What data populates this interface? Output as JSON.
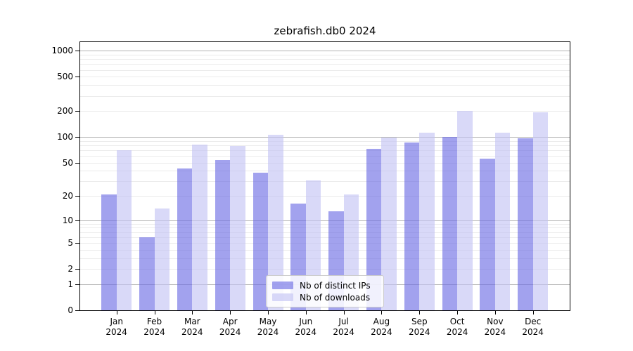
{
  "chart_data": {
    "type": "bar",
    "title": "zebrafish.db0 2024",
    "categories": [
      "Jan",
      "Feb",
      "Mar",
      "Apr",
      "May",
      "Jun",
      "Jul",
      "Aug",
      "Sep",
      "Oct",
      "Nov",
      "Dec"
    ],
    "category_year": "2024",
    "series": [
      {
        "name": "Nb of distinct IPs",
        "color": "rgba(105,105,228,0.62)",
        "values": [
          21,
          6,
          43,
          54,
          38,
          16,
          13,
          73,
          87,
          101,
          56,
          97
        ]
      },
      {
        "name": "Nb of downloads",
        "color": "rgba(193,193,244,0.62)",
        "values": [
          70,
          14,
          82,
          79,
          106,
          31,
          21,
          98,
          112,
          200,
          113,
          195
        ]
      }
    ],
    "y_axis": {
      "scale": "log1p",
      "ticks": [
        0,
        1,
        2,
        5,
        10,
        20,
        50,
        100,
        200,
        500,
        1000
      ],
      "major_gridlines": [
        1,
        10,
        100,
        1000
      ],
      "minor_gridlines": [
        2,
        3,
        4,
        5,
        6,
        7,
        8,
        9,
        20,
        30,
        40,
        50,
        60,
        70,
        80,
        90,
        200,
        300,
        400,
        500,
        600,
        700,
        800,
        900
      ]
    },
    "xlabel": "",
    "ylabel": "",
    "legend_position": "lower center",
    "grid": true,
    "colors": {
      "major_grid": "#b3b3b3",
      "minor_grid": "#ebebeb",
      "spine": "#000000",
      "text": "#000000"
    }
  }
}
